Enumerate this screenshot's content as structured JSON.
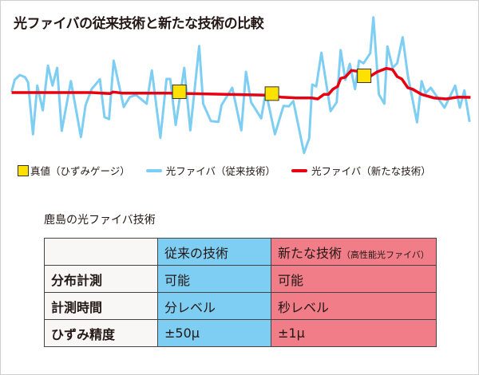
{
  "title": "光ファイバの従来技術と新たな技術の比較",
  "colors": {
    "conventional": "#7ecef4",
    "new": "#e60012",
    "true_value": "#ffe100",
    "table_blue": "#7ecef4",
    "table_red": "#f07d88"
  },
  "legend": {
    "true_value": "真値（ひずみゲージ）",
    "conventional": "光ファイバ（従来技術）",
    "new": "光ファイバ（新たな技術）"
  },
  "table_title": "鹿島の光ファイバ技術",
  "table": {
    "headers": [
      "",
      "従来の技術",
      "新たな技術",
      "（高性能光ファイバ）"
    ],
    "rows": [
      {
        "label": "分布計測",
        "conventional": "可能",
        "new": "可能"
      },
      {
        "label": "計測時間",
        "conventional": "分レベル",
        "new": "秒レベル"
      },
      {
        "label": "ひずみ精度",
        "conventional": "±50μ",
        "new": "±1μ"
      }
    ]
  }
}
